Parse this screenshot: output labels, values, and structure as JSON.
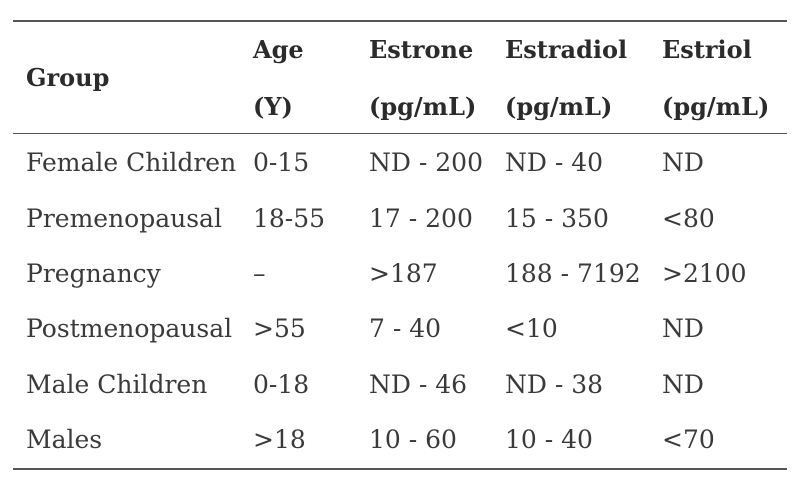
{
  "table": {
    "headers": [
      {
        "line1": "Group",
        "line2": ""
      },
      {
        "line1": "Age",
        "line2": "(Y)"
      },
      {
        "line1": "Estrone",
        "line2": "(pg/mL)"
      },
      {
        "line1": "Estradiol",
        "line2": "(pg/mL)"
      },
      {
        "line1": "Estriol",
        "line2": "(pg/mL)"
      }
    ],
    "rows": [
      [
        "Female Children",
        "0-15",
        "ND - 200",
        "ND - 40",
        "ND"
      ],
      [
        "Premenopausal",
        "18-55",
        "17 - 200",
        "15 - 350",
        "<80"
      ],
      [
        "Pregnancy",
        "–",
        ">187",
        "188 - 7192",
        ">2100"
      ],
      [
        "Postmenopausal",
        ">55",
        "7 - 40",
        "<10",
        "ND"
      ],
      [
        "Male Children",
        "0-18",
        "ND - 46",
        "ND - 38",
        "ND"
      ],
      [
        "Males",
        ">18",
        "10 - 60",
        "10 - 40",
        "<70"
      ]
    ]
  }
}
